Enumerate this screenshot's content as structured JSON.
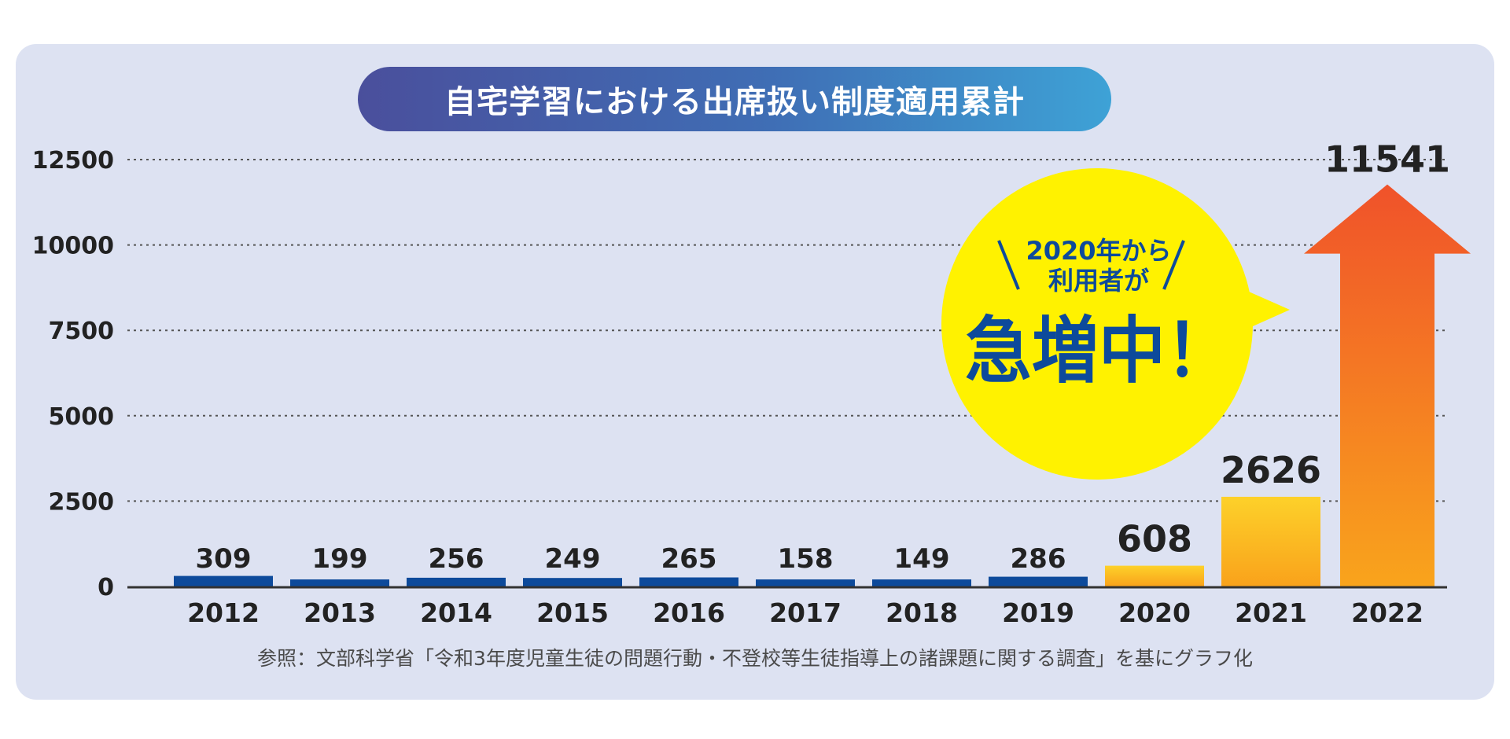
{
  "colors": {
    "panel": "#dde2f2",
    "bar_normal": "#0d4a9b",
    "bar_highlight_start": "#fdd12a",
    "bar_highlight_end": "#f9a21b",
    "arrow_top": "#f0522a",
    "arrow_bottom": "#f9a21b",
    "bubble": "#fff200",
    "bubble_text": "#0d4a9b",
    "grid": "#555555"
  },
  "note": {
    "source": "参照：文部科学省「令和3年度児童生徒の問題行動・不登校等生徒指導上の諸課題に関する調査」を基にグラフ化"
  },
  "callout": {
    "line1": "2020年から",
    "line2": "利用者が",
    "headline": "急増中！"
  },
  "chart_data": {
    "type": "bar",
    "title": "自宅学習における出席扱い制度適用累計",
    "xlabel": "",
    "ylabel": "",
    "ylim": [
      0,
      12500
    ],
    "yticks": [
      "0",
      "2500",
      "5000",
      "7500",
      "10000",
      "12500"
    ],
    "grid": true,
    "categories": [
      "2012",
      "2013",
      "2014",
      "2015",
      "2016",
      "2017",
      "2018",
      "2019",
      "2020",
      "2021",
      "2022"
    ],
    "values": [
      309,
      199,
      256,
      249,
      265,
      158,
      149,
      286,
      608,
      2626,
      11541
    ],
    "data_labels": [
      "309",
      "199",
      "256",
      "249",
      "265",
      "158",
      "149",
      "286",
      "608",
      "2626",
      "11541"
    ],
    "highlighted_from": "2020",
    "last_value_style": "arrow"
  }
}
